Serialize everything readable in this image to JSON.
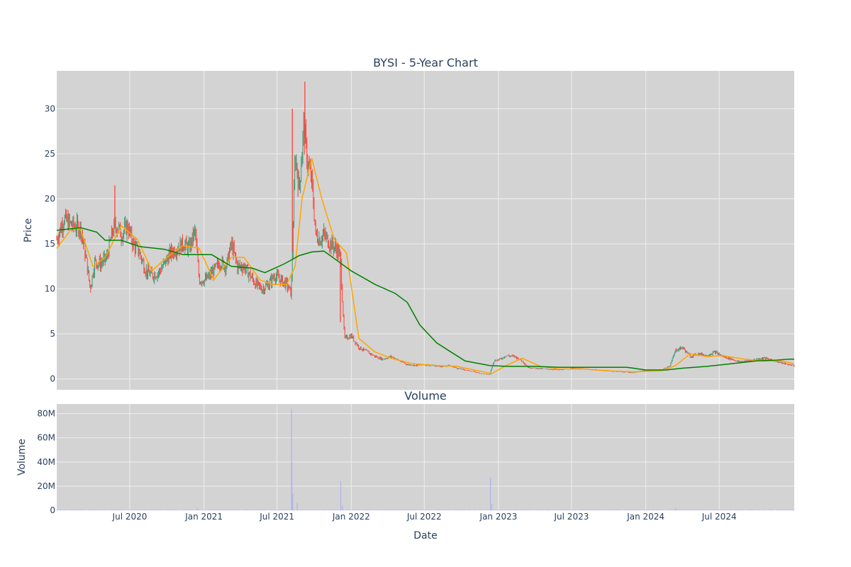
{
  "chart_data": [
    {
      "type": "candlestick",
      "title": "BYSI - 5-Year Chart",
      "xlabel": "",
      "ylabel": "Price",
      "xlim": [
        "2020-01-02",
        "2025-01-03"
      ],
      "ylim": [
        -1.2,
        34.2
      ],
      "yticks": [
        0,
        5,
        10,
        15,
        20,
        25,
        30
      ],
      "xticks": [
        {
          "date": "2020-07-01",
          "label": "Jul 2020"
        },
        {
          "date": "2021-01-01",
          "label": "Jan 2021"
        },
        {
          "date": "2021-07-01",
          "label": "Jul 2021"
        },
        {
          "date": "2022-01-01",
          "label": "Jan 2022"
        },
        {
          "date": "2022-07-01",
          "label": "Jul 2022"
        },
        {
          "date": "2023-01-01",
          "label": "Jan 2023"
        },
        {
          "date": "2023-07-01",
          "label": "Jul 2023"
        },
        {
          "date": "2024-01-01",
          "label": "Jan 2024"
        },
        {
          "date": "2024-07-01",
          "label": "Jul 2024"
        }
      ],
      "grid": true,
      "legend": "none",
      "colors": {
        "up": "#3d9970",
        "down": "#ff4136",
        "ma_short": "#ffa500",
        "ma_long": "#008000",
        "plot_bg": "#d3d3d3",
        "grid": "#eeeeee"
      },
      "close_series": {
        "name": "BYSI",
        "dates": [
          "2020-01-02",
          "2020-01-20",
          "2020-02-10",
          "2020-03-01",
          "2020-03-16",
          "2020-03-25",
          "2020-04-05",
          "2020-04-20",
          "2020-05-05",
          "2020-05-20",
          "2020-06-01",
          "2020-06-10",
          "2020-06-25",
          "2020-07-10",
          "2020-07-25",
          "2020-08-10",
          "2020-08-25",
          "2020-09-10",
          "2020-09-25",
          "2020-10-10",
          "2020-10-25",
          "2020-11-10",
          "2020-11-25",
          "2020-12-10",
          "2020-12-20",
          "2021-01-05",
          "2021-01-25",
          "2021-02-10",
          "2021-02-25",
          "2021-03-10",
          "2021-03-25",
          "2021-04-10",
          "2021-04-25",
          "2021-05-10",
          "2021-05-25",
          "2021-06-10",
          "2021-06-25",
          "2021-07-10",
          "2021-07-25",
          "2021-08-05",
          "2021-08-15",
          "2021-08-25",
          "2021-09-05",
          "2021-09-15",
          "2021-09-25",
          "2021-10-05",
          "2021-10-15",
          "2021-10-25",
          "2021-11-10",
          "2021-11-25",
          "2021-12-05",
          "2021-12-15",
          "2022-01-01",
          "2022-01-20",
          "2022-02-10",
          "2022-03-01",
          "2022-03-20",
          "2022-04-10",
          "2022-05-01",
          "2022-05-20",
          "2022-06-10",
          "2022-07-01",
          "2022-07-20",
          "2022-08-10",
          "2022-09-01",
          "2022-09-20",
          "2022-10-10",
          "2022-11-01",
          "2022-11-20",
          "2022-12-10",
          "2022-12-20",
          "2023-01-05",
          "2023-01-20",
          "2023-02-10",
          "2023-03-01",
          "2023-03-15",
          "2023-04-01",
          "2023-05-01",
          "2023-06-01",
          "2023-07-01",
          "2023-08-01",
          "2023-09-01",
          "2023-10-01",
          "2023-11-01",
          "2023-12-01",
          "2024-01-01",
          "2024-01-20",
          "2024-02-10",
          "2024-03-01",
          "2024-03-15",
          "2024-04-01",
          "2024-04-20",
          "2024-05-10",
          "2024-06-01",
          "2024-06-20",
          "2024-07-10",
          "2024-08-01",
          "2024-08-20",
          "2024-09-10",
          "2024-10-01",
          "2024-10-20",
          "2024-11-10",
          "2024-12-01",
          "2024-12-20",
          "2025-01-03"
        ],
        "close": [
          15.5,
          17.8,
          17.0,
          16.8,
          13.0,
          10.0,
          13.0,
          12.8,
          13.5,
          16.5,
          17.0,
          16.0,
          17.0,
          15.0,
          14.0,
          12.0,
          11.5,
          11.8,
          12.8,
          14.0,
          14.5,
          15.0,
          14.5,
          16.5,
          11.0,
          11.0,
          12.0,
          13.0,
          12.5,
          15.0,
          12.5,
          12.5,
          11.5,
          10.5,
          10.0,
          10.5,
          11.5,
          11.0,
          10.5,
          9.5,
          25.0,
          21.0,
          28.0,
          24.0,
          22.0,
          16.0,
          15.5,
          16.0,
          15.0,
          14.5,
          13.5,
          4.5,
          4.8,
          3.5,
          3.0,
          2.5,
          2.2,
          2.5,
          2.0,
          1.6,
          1.5,
          1.6,
          1.5,
          1.4,
          1.5,
          1.2,
          1.0,
          0.8,
          0.6,
          0.5,
          2.0,
          2.2,
          2.6,
          2.5,
          2.0,
          1.3,
          1.2,
          1.1,
          1.0,
          1.2,
          1.1,
          1.0,
          0.9,
          0.8,
          0.7,
          1.0,
          0.9,
          1.0,
          1.5,
          3.2,
          3.5,
          2.5,
          2.8,
          2.6,
          3.0,
          2.5,
          2.2,
          1.9,
          2.0,
          2.2,
          2.3,
          2.1,
          1.8,
          1.6,
          1.5
        ],
        "high_points": [
          {
            "date": "2020-05-25",
            "value": 21.5
          },
          {
            "date": "2021-08-08",
            "value": 30.0
          },
          {
            "date": "2021-09-08",
            "value": 33.0
          },
          {
            "date": "2021-12-05",
            "value": 6.3
          }
        ]
      },
      "ma_short": {
        "dates": [
          "2020-01-02",
          "2020-02-10",
          "2020-03-01",
          "2020-04-01",
          "2020-05-01",
          "2020-06-10",
          "2020-07-20",
          "2020-08-25",
          "2020-10-01",
          "2020-11-10",
          "2020-12-20",
          "2021-01-25",
          "2021-03-10",
          "2021-04-10",
          "2021-05-20",
          "2021-06-20",
          "2021-07-25",
          "2021-08-15",
          "2021-09-01",
          "2021-09-25",
          "2021-10-20",
          "2021-11-20",
          "2021-12-20",
          "2022-01-20",
          "2022-03-01",
          "2022-04-10",
          "2022-06-01",
          "2022-08-01",
          "2022-09-20",
          "2022-11-01",
          "2022-12-15",
          "2023-01-20",
          "2023-03-01",
          "2023-04-15",
          "2023-06-01",
          "2023-08-01",
          "2023-10-01",
          "2023-12-01",
          "2024-02-10",
          "2024-03-15",
          "2024-04-20",
          "2024-06-01",
          "2024-07-10",
          "2024-09-01",
          "2024-10-20",
          "2024-12-01",
          "2025-01-03"
        ],
        "values": [
          14.5,
          16.8,
          16.6,
          12.5,
          13.5,
          17.0,
          15.5,
          12.0,
          13.5,
          14.8,
          14.5,
          11.0,
          13.5,
          13.5,
          11.0,
          10.5,
          10.5,
          12.5,
          20.0,
          24.5,
          20.0,
          15.5,
          14.0,
          4.5,
          3.0,
          2.3,
          1.7,
          1.5,
          1.4,
          1.0,
          0.6,
          1.5,
          2.3,
          1.4,
          1.1,
          1.1,
          0.9,
          0.8,
          0.9,
          1.5,
          2.8,
          2.5,
          2.6,
          2.2,
          2.0,
          2.0,
          1.7
        ]
      },
      "ma_long": {
        "dates": [
          "2020-01-02",
          "2020-03-01",
          "2020-04-10",
          "2020-05-01",
          "2020-06-10",
          "2020-07-25",
          "2020-09-25",
          "2020-11-10",
          "2020-12-20",
          "2021-01-20",
          "2021-03-10",
          "2021-05-01",
          "2021-06-01",
          "2021-07-20",
          "2021-08-25",
          "2021-09-25",
          "2021-10-25",
          "2021-11-25",
          "2022-01-01",
          "2022-03-01",
          "2022-04-20",
          "2022-05-20",
          "2022-06-20",
          "2022-08-01",
          "2022-10-10",
          "2022-12-10",
          "2023-01-20",
          "2023-04-01",
          "2023-06-01",
          "2023-08-01",
          "2023-10-01",
          "2023-11-15",
          "2024-01-01",
          "2024-02-20",
          "2024-04-01",
          "2024-06-01",
          "2024-08-01",
          "2024-10-01",
          "2024-11-20",
          "2024-12-20",
          "2025-01-03"
        ],
        "values": [
          16.5,
          16.8,
          16.3,
          15.4,
          15.4,
          14.7,
          14.4,
          13.8,
          13.8,
          13.8,
          12.5,
          12.3,
          11.8,
          12.8,
          13.7,
          14.1,
          14.2,
          13.2,
          12.0,
          10.5,
          9.5,
          8.5,
          6.0,
          4.0,
          2.0,
          1.5,
          1.4,
          1.4,
          1.3,
          1.3,
          1.3,
          1.3,
          1.0,
          1.0,
          1.2,
          1.4,
          1.7,
          2.0,
          2.1,
          2.2,
          2.2
        ]
      }
    },
    {
      "type": "bar",
      "title": "Volume",
      "xlabel": "Date",
      "ylabel": "Volume",
      "ylim": [
        0,
        88000000
      ],
      "yticks": [
        {
          "value": 0,
          "label": "0"
        },
        {
          "value": 20000000,
          "label": "20M"
        },
        {
          "value": 40000000,
          "label": "40M"
        },
        {
          "value": 60000000,
          "label": "60M"
        },
        {
          "value": 80000000,
          "label": "80M"
        }
      ],
      "color": "#b0b0f0",
      "baseline_volume": 500000,
      "spikes": [
        {
          "date": "2021-08-06",
          "value": 84000000
        },
        {
          "date": "2021-08-07",
          "value": 40000000
        },
        {
          "date": "2021-08-09",
          "value": 14000000
        },
        {
          "date": "2021-08-20",
          "value": 6000000
        },
        {
          "date": "2021-12-06",
          "value": 24000000
        },
        {
          "date": "2021-12-10",
          "value": 4000000
        },
        {
          "date": "2022-12-12",
          "value": 27000000
        },
        {
          "date": "2022-12-15",
          "value": 5000000
        },
        {
          "date": "2020-12-15",
          "value": 1500000
        },
        {
          "date": "2024-03-15",
          "value": 2000000
        }
      ]
    }
  ]
}
